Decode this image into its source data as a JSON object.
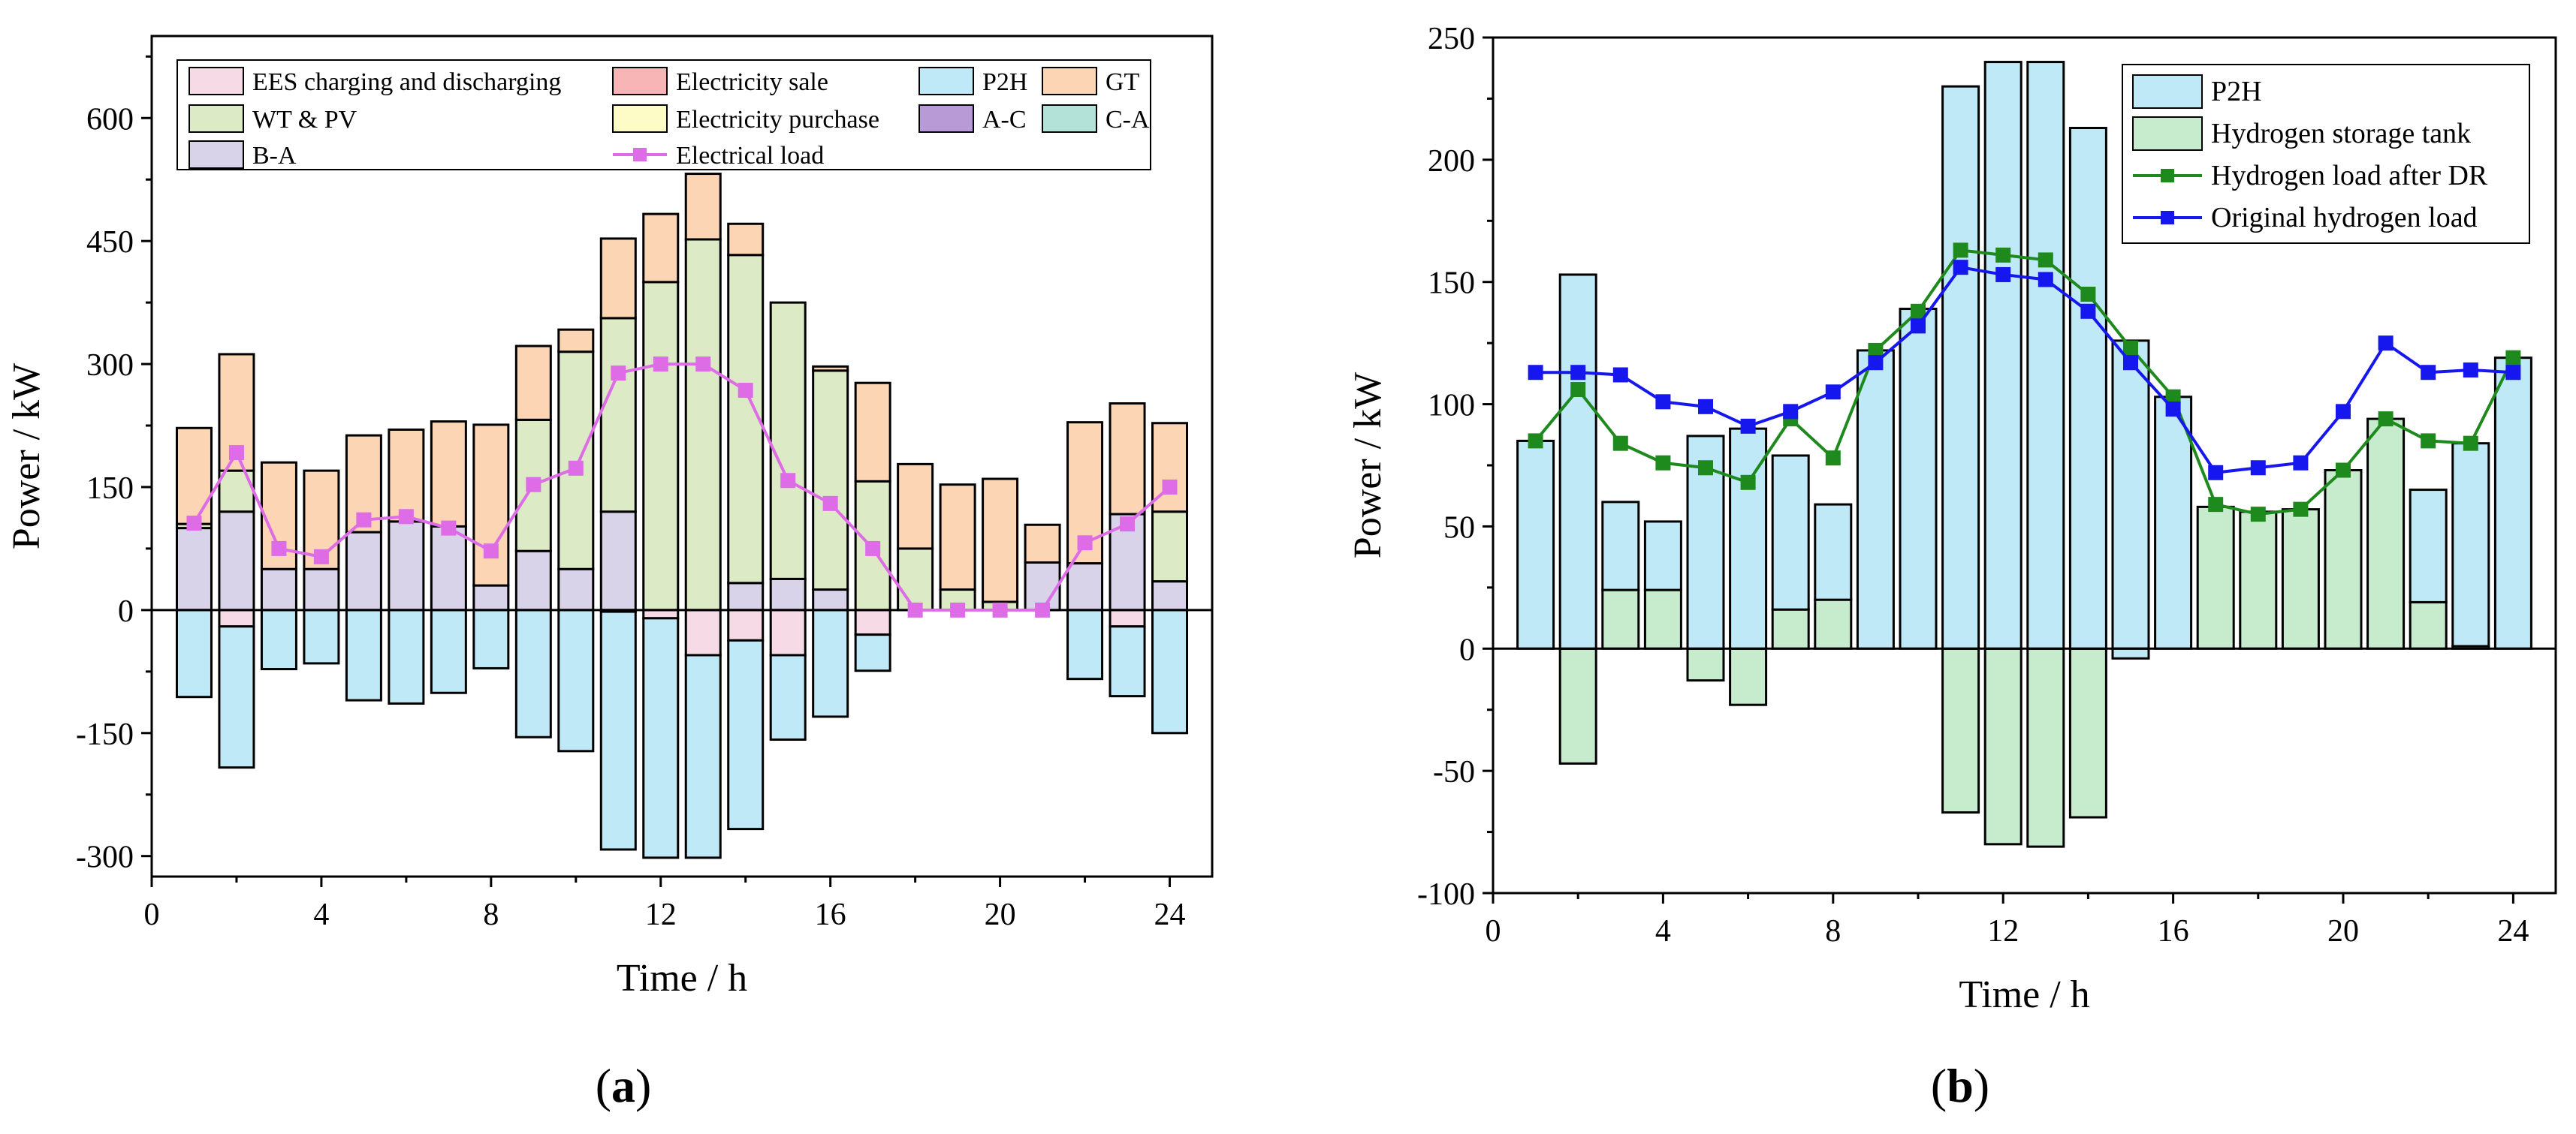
{
  "chart_data": [
    {
      "id": "a",
      "panel_label": "a",
      "type": "bar",
      "stacked": true,
      "xlabel": "Time / h",
      "ylabel": "Power / kW",
      "xlim": [
        0,
        25
      ],
      "ylim": [
        -325,
        700
      ],
      "xticks": [
        0,
        4,
        8,
        12,
        16,
        20,
        24
      ],
      "yticks": [
        -300,
        -150,
        0,
        150,
        300,
        450,
        600
      ],
      "x": [
        1,
        2,
        3,
        4,
        5,
        6,
        7,
        8,
        9,
        10,
        11,
        12,
        13,
        14,
        15,
        16,
        17,
        18,
        19,
        20,
        21,
        22,
        23,
        24
      ],
      "legend": {
        "placement": "top",
        "items": [
          {
            "label": "EES charging and discharging",
            "kind": "bar",
            "color": "#f6dbe6"
          },
          {
            "label": "Electricity sale",
            "kind": "bar",
            "color": "#f7b5b5"
          },
          {
            "label": "P2H",
            "kind": "bar",
            "color": "#bfe9f6"
          },
          {
            "label": "GT",
            "kind": "bar",
            "color": "#fcd5b4"
          },
          {
            "label": "WT & PV",
            "kind": "bar",
            "color": "#dcebc5"
          },
          {
            "label": "Electricity purchase",
            "kind": "bar",
            "color": "#fefcc6"
          },
          {
            "label": "A-C",
            "kind": "bar",
            "color": "#b79ad6"
          },
          {
            "label": "C-A",
            "kind": "bar",
            "color": "#b3e2d8"
          },
          {
            "label": "B-A",
            "kind": "bar",
            "color": "#d8d3e8"
          },
          {
            "label": "Electrical load",
            "kind": "line",
            "color": "#dd6ce6"
          }
        ]
      },
      "series": [
        {
          "name": "B-A",
          "color": "#d8d3e8",
          "values": [
            100,
            120,
            50,
            50,
            95,
            108,
            102,
            30,
            72,
            50,
            120,
            0,
            0,
            33,
            38,
            25,
            0,
            0,
            0,
            0,
            58,
            57,
            117,
            35
          ]
        },
        {
          "name": "WT & PV",
          "color": "#dcebc5",
          "values": [
            5,
            50,
            0,
            0,
            0,
            0,
            0,
            0,
            160,
            265,
            236,
            400,
            452,
            400,
            337,
            267,
            157,
            75,
            25,
            10,
            0,
            0,
            0,
            85
          ]
        },
        {
          "name": "GT",
          "color": "#fcd5b4",
          "values": [
            117,
            142,
            130,
            120,
            118,
            112,
            128,
            196,
            90,
            27,
            97,
            83,
            80,
            38,
            0,
            5,
            120,
            103,
            128,
            150,
            46,
            172,
            135,
            108
          ]
        },
        {
          "name": "EES charging and discharging",
          "color": "#f6dbe6",
          "values": [
            0,
            -20,
            0,
            0,
            0,
            0,
            0,
            0,
            0,
            0,
            -2,
            -10,
            -55,
            -37,
            -55,
            0,
            -30,
            0,
            0,
            0,
            0,
            0,
            -20,
            0
          ]
        },
        {
          "name": "P2H",
          "color": "#bfe9f6",
          "values": [
            -106,
            -172,
            -72,
            -65,
            -110,
            -114,
            -101,
            -71,
            -155,
            -172,
            -290,
            -292,
            -247,
            -230,
            -103,
            -130,
            -44,
            0,
            0,
            0,
            0,
            -84,
            -85,
            -150
          ]
        }
      ],
      "line_series": [
        {
          "name": "Electrical load",
          "color": "#dd6ce6",
          "values": [
            106,
            192,
            75,
            65,
            110,
            114,
            100,
            72,
            153,
            173,
            289,
            300,
            300,
            268,
            158,
            130,
            75,
            0,
            0,
            0,
            0,
            82,
            105,
            150
          ]
        }
      ]
    },
    {
      "id": "b",
      "panel_label": "b",
      "type": "bar",
      "stacked": true,
      "xlabel": "Time / h",
      "ylabel": "Power / kW",
      "xlim": [
        0,
        25
      ],
      "ylim": [
        -100,
        250
      ],
      "xticks": [
        0,
        4,
        8,
        12,
        16,
        20,
        24
      ],
      "yticks": [
        -100,
        -50,
        0,
        50,
        100,
        150,
        200,
        250
      ],
      "x": [
        1,
        2,
        3,
        4,
        5,
        6,
        7,
        8,
        9,
        10,
        11,
        12,
        13,
        14,
        15,
        16,
        17,
        18,
        19,
        20,
        21,
        22,
        23,
        24
      ],
      "legend": {
        "placement": "top-right",
        "items": [
          {
            "label": "P2H",
            "kind": "bar",
            "color": "#bfe9f6"
          },
          {
            "label": "Hydrogen storage tank",
            "kind": "bar",
            "color": "#c7ebcd"
          },
          {
            "label": "Hydrogen load after DR",
            "kind": "line",
            "color": "#1e8a1e"
          },
          {
            "label": "Original hydrogen load",
            "kind": "line",
            "color": "#1616ee"
          }
        ]
      },
      "series": [
        {
          "name": "Hydrogen storage tank",
          "color": "#c7ebcd",
          "values": [
            0,
            -47,
            24,
            24,
            -13,
            -23,
            16,
            20,
            0,
            0,
            -67,
            -80,
            -81,
            -69,
            0,
            0,
            58,
            56,
            57,
            73,
            94,
            19,
            1,
            0
          ]
        },
        {
          "name": "P2H",
          "color": "#bfe9f6",
          "values": [
            85,
            153,
            36,
            28,
            87,
            90,
            63,
            39,
            122,
            139,
            230,
            240,
            240,
            213,
            126,
            103,
            0,
            0,
            0,
            0,
            0,
            46,
            83,
            119
          ]
        },
        {
          "name": "P2H negative",
          "color": "#bfe9f6",
          "values": [
            0,
            0,
            0,
            0,
            0,
            0,
            0,
            0,
            0,
            0,
            0,
            0,
            0,
            0,
            -4,
            0,
            0,
            0,
            0,
            0,
            0,
            0,
            0,
            0
          ]
        }
      ],
      "line_series": [
        {
          "name": "Hydrogen load after DR",
          "color": "#1e8a1e",
          "values": [
            85,
            106,
            84,
            76,
            74,
            68,
            94,
            78,
            122,
            138,
            163,
            161,
            159,
            145,
            123,
            103,
            59,
            55,
            57,
            73,
            94,
            85,
            84,
            119
          ]
        },
        {
          "name": "Original hydrogen load",
          "color": "#1616ee",
          "values": [
            113,
            113,
            112,
            101,
            99,
            91,
            97,
            105,
            117,
            132,
            156,
            153,
            151,
            138,
            117,
            98,
            72,
            74,
            76,
            97,
            125,
            113,
            114,
            113
          ]
        }
      ]
    }
  ]
}
